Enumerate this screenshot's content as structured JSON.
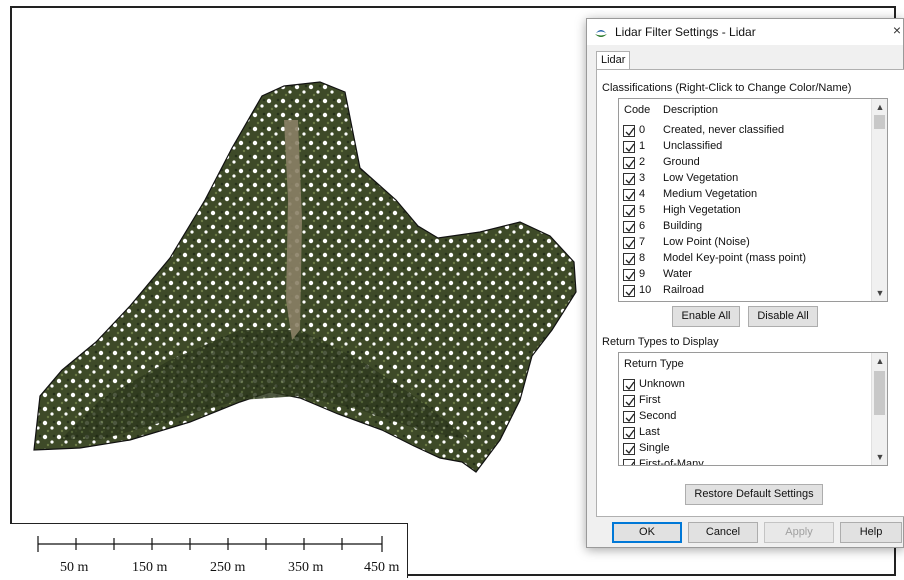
{
  "map": {
    "scale_labels": [
      "50 m",
      "150 m",
      "250 m",
      "350 m",
      "450 m"
    ]
  },
  "dialog": {
    "title": "Lidar Filter Settings - Lidar",
    "close_glyph": "×",
    "tab_label": "Lidar",
    "classifications": {
      "group_label": "Classifications (Right-Click to Change Color/Name)",
      "col_code": "Code",
      "col_description": "Description",
      "rows": [
        {
          "code": "0",
          "description": "Created, never classified",
          "checked": true
        },
        {
          "code": "1",
          "description": "Unclassified",
          "checked": true
        },
        {
          "code": "2",
          "description": "Ground",
          "checked": true
        },
        {
          "code": "3",
          "description": "Low Vegetation",
          "checked": true
        },
        {
          "code": "4",
          "description": "Medium Vegetation",
          "checked": true
        },
        {
          "code": "5",
          "description": "High Vegetation",
          "checked": true
        },
        {
          "code": "6",
          "description": "Building",
          "checked": true
        },
        {
          "code": "7",
          "description": "Low Point (Noise)",
          "checked": true
        },
        {
          "code": "8",
          "description": "Model Key-point (mass point)",
          "checked": true
        },
        {
          "code": "9",
          "description": "Water",
          "checked": true
        },
        {
          "code": "10",
          "description": "Railroad",
          "checked": true
        }
      ],
      "enable_all": "Enable All",
      "disable_all": "Disable All"
    },
    "return_types": {
      "group_label": "Return Types to Display",
      "col_return_type": "Return Type",
      "rows": [
        {
          "label": "Unknown",
          "checked": true
        },
        {
          "label": "First",
          "checked": true
        },
        {
          "label": "Second",
          "checked": true
        },
        {
          "label": "Last",
          "checked": true
        },
        {
          "label": "Single",
          "checked": true
        },
        {
          "label": "First-of-Many",
          "checked": true
        }
      ]
    },
    "restore_defaults": "Restore Default Settings",
    "buttons": {
      "ok": "OK",
      "cancel": "Cancel",
      "apply": "Apply",
      "help": "Help"
    }
  }
}
